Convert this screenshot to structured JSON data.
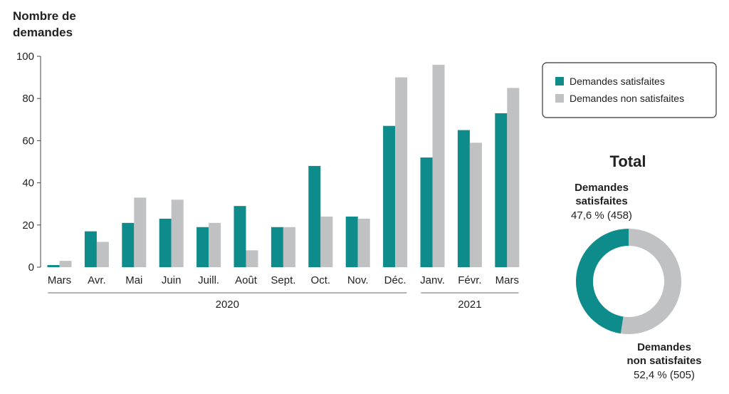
{
  "colors": {
    "satisfied": "#0e8b8b",
    "unsatisfied": "#c0c1c3",
    "axis": "#444444"
  },
  "chart_data": [
    {
      "type": "bar",
      "ylabel_lines": [
        "Nombre de",
        "demandes"
      ],
      "ylim": [
        0,
        100
      ],
      "yticks": [
        0,
        20,
        40,
        60,
        80,
        100
      ],
      "categories": [
        "Mars",
        "Avr.",
        "Mai",
        "Juin",
        "Juill.",
        "Août",
        "Sept.",
        "Oct.",
        "Nov.",
        "Déc.",
        "Janv.",
        "Févr.",
        "Mars"
      ],
      "year_groups": [
        {
          "label": "2020",
          "categories_count": 10
        },
        {
          "label": "2021",
          "categories_count": 3
        }
      ],
      "series": [
        {
          "name": "Demandes satisfaites",
          "color": "#0e8b8b",
          "values": [
            1,
            17,
            21,
            23,
            19,
            29,
            19,
            48,
            24,
            67,
            52,
            65,
            73
          ]
        },
        {
          "name": "Demandes non satisfaites",
          "color": "#c0c1c3",
          "values": [
            3,
            12,
            33,
            32,
            21,
            8,
            19,
            24,
            23,
            90,
            96,
            59,
            85
          ]
        }
      ],
      "legend": {
        "placement": "top-right",
        "items": [
          "Demandes satisfaites",
          "Demandes non satisfaites"
        ]
      },
      "grid": false
    },
    {
      "type": "pie",
      "title": "Total",
      "donut": true,
      "slices": [
        {
          "label_lines": [
            "Demandes",
            "satisfaites"
          ],
          "value_text": "47,6 % (458)",
          "percent": 47.6,
          "count": 458,
          "color": "#0e8b8b"
        },
        {
          "label_lines": [
            "Demandes",
            "non satisfaites"
          ],
          "value_text": "52,4 % (505)",
          "percent": 52.4,
          "count": 505,
          "color": "#c0c1c3"
        }
      ]
    }
  ]
}
